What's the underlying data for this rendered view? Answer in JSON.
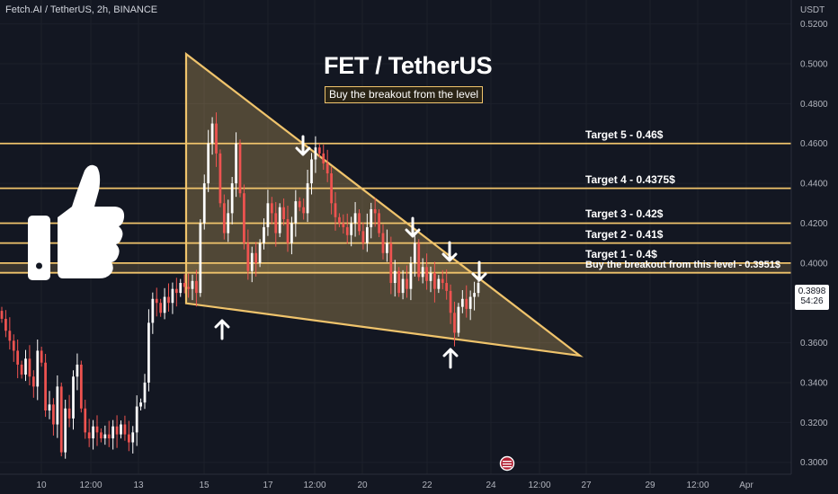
{
  "header": {
    "symbol": "Fetch.AI / TetherUS, 2h, BINANCE"
  },
  "annotation": {
    "title": "FET / TetherUS",
    "subtitle": "Buy the breakout from the level"
  },
  "axis": {
    "currency": "USDT"
  },
  "current": {
    "price": "0.3898",
    "countdown": "54:26"
  },
  "colors": {
    "up": "#ffffff",
    "down": "#ef5350",
    "level": "#f0c46c",
    "background": "#131722"
  },
  "icons": {
    "thumb": "thumbs-up-icon",
    "arrow": "arrow-icon",
    "event": "flag-event-icon"
  },
  "chart_data": {
    "type": "candlestick",
    "x_ticks": [
      "10",
      "12:00",
      "13",
      "15",
      "17",
      "12:00",
      "20",
      "22",
      "24",
      "12:00",
      "27",
      "29",
      "12:00",
      "Apr"
    ],
    "y_ticks": [
      "0.5200",
      "0.5000",
      "0.4800",
      "0.4600",
      "0.4400",
      "0.4200",
      "0.4000",
      "0.3800",
      "0.3600",
      "0.3400",
      "0.3200",
      "0.3000"
    ],
    "ylim": [
      0.294,
      0.532
    ],
    "levels": [
      {
        "label": "Target 5 - 0.46$",
        "value": 0.46
      },
      {
        "label": "Target 4 - 0.4375$",
        "value": 0.4375
      },
      {
        "label": "Target 3 - 0.42$",
        "value": 0.42
      },
      {
        "label": "Target 2 - 0.41$",
        "value": 0.41
      },
      {
        "label": "Target 1 - 0.4$",
        "value": 0.4
      },
      {
        "label": "Buy the breakout from this level - 0.3951$",
        "value": 0.3951
      }
    ],
    "series_closes": [
      0.372,
      0.366,
      0.361,
      0.356,
      0.349,
      0.344,
      0.352,
      0.343,
      0.338,
      0.356,
      0.35,
      0.326,
      0.329,
      0.319,
      0.338,
      0.305,
      0.327,
      0.322,
      0.343,
      0.349,
      0.327,
      0.315,
      0.312,
      0.318,
      0.315,
      0.312,
      0.314,
      0.312,
      0.318,
      0.314,
      0.319,
      0.314,
      0.31,
      0.315,
      0.328,
      0.33,
      0.34,
      0.37,
      0.382,
      0.38,
      0.375,
      0.383,
      0.38,
      0.387,
      0.385,
      0.39,
      0.388,
      0.387,
      0.391,
      0.385,
      0.42,
      0.44,
      0.46,
      0.47,
      0.455,
      0.43,
      0.415,
      0.425,
      0.44,
      0.46,
      0.435,
      0.41,
      0.396,
      0.405,
      0.4,
      0.41,
      0.418,
      0.43,
      0.425,
      0.415,
      0.428,
      0.422,
      0.41,
      0.42,
      0.431,
      0.428,
      0.425,
      0.44,
      0.452,
      0.458,
      0.455,
      0.45,
      0.445,
      0.43,
      0.423,
      0.42,
      0.418,
      0.414,
      0.42,
      0.425,
      0.416,
      0.41,
      0.418,
      0.427,
      0.425,
      0.415,
      0.405,
      0.41,
      0.39,
      0.396,
      0.385,
      0.392,
      0.387,
      0.4,
      0.41,
      0.393,
      0.398,
      0.391,
      0.395,
      0.387,
      0.392,
      0.39,
      0.386,
      0.375,
      0.365,
      0.378,
      0.382,
      0.377,
      0.383,
      0.385,
      0.39
    ],
    "triangle_upper": {
      "from": [
        207,
        0.5049
      ],
      "to": [
        645,
        0.3535
      ]
    },
    "triangle_lower": {
      "from": [
        207,
        0.3798
      ],
      "to": [
        645,
        0.3535
      ]
    }
  }
}
